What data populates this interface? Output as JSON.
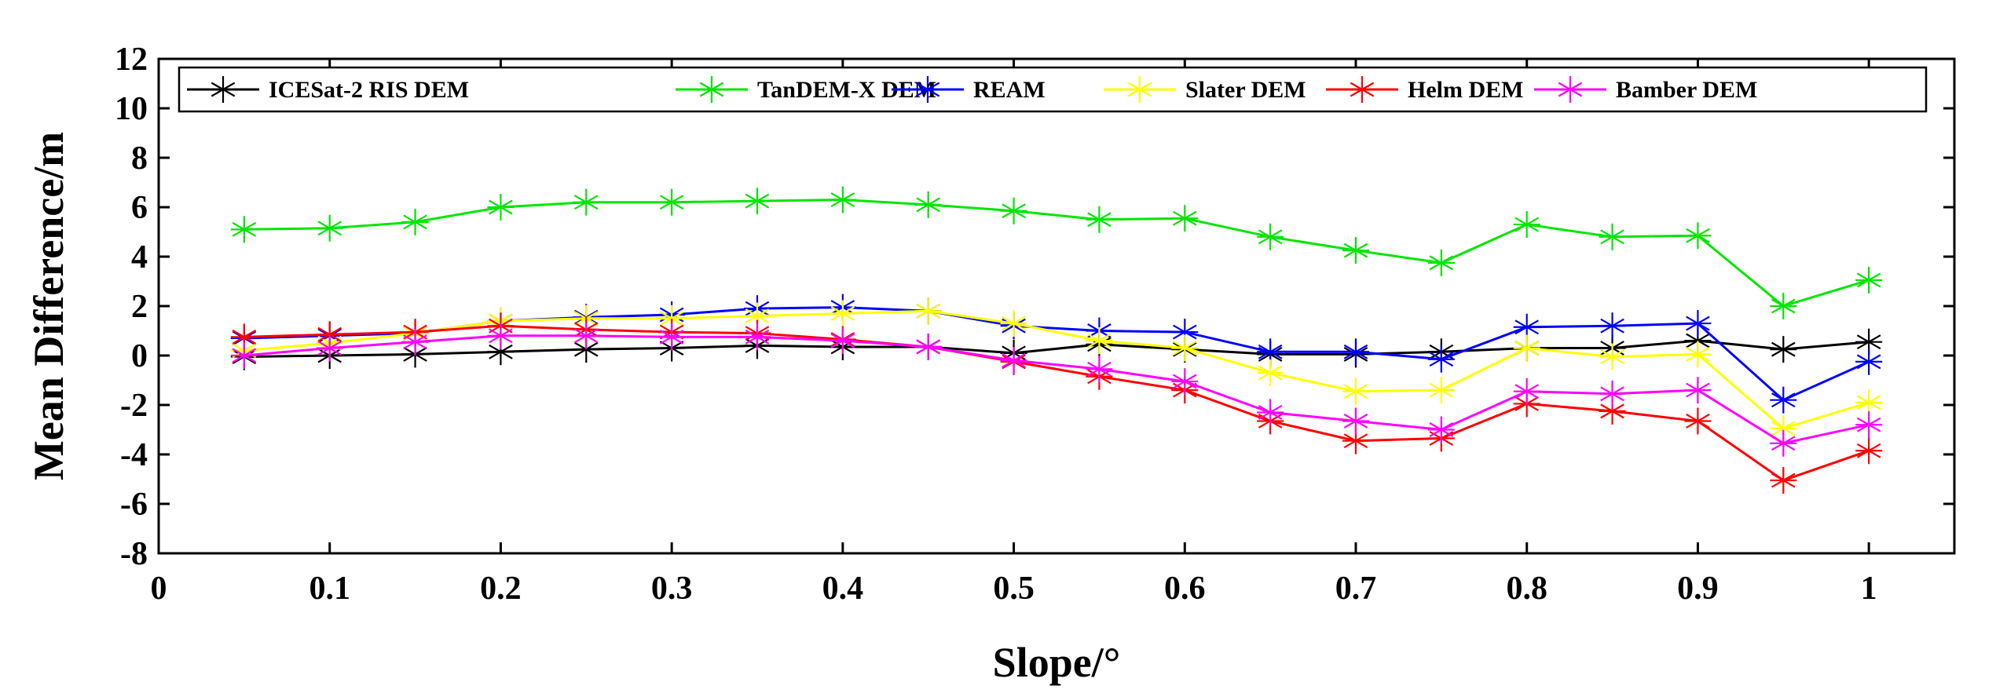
{
  "chart_data": {
    "type": "line",
    "title": "",
    "xlabel": "Slope/°",
    "ylabel": "Mean Difference/m",
    "xlim": [
      0,
      1.05
    ],
    "ylim": [
      -8,
      12
    ],
    "xticks": [
      0,
      0.1,
      0.2,
      0.3,
      0.4,
      0.5,
      0.6,
      0.7,
      0.8,
      0.9,
      1
    ],
    "xtick_labels": [
      "0",
      "0.1",
      "0.2",
      "0.3",
      "0.4",
      "0.5",
      "0.6",
      "0.7",
      "0.8",
      "0.9",
      "1"
    ],
    "yticks": [
      -8,
      -6,
      -4,
      -2,
      0,
      2,
      4,
      6,
      8,
      10,
      12
    ],
    "ytick_labels": [
      "-8",
      "-6",
      "-4",
      "-2",
      "0",
      "2",
      "4",
      "6",
      "8",
      "10",
      "12"
    ],
    "grid": false,
    "legend_position": "top",
    "marker": "asterisk",
    "x": [
      0.05,
      0.1,
      0.15,
      0.2,
      0.25,
      0.3,
      0.35,
      0.4,
      0.45,
      0.5,
      0.55,
      0.6,
      0.65,
      0.7,
      0.75,
      0.8,
      0.85,
      0.9,
      0.95,
      1.0
    ],
    "series": [
      {
        "name": "ICESat-2 RIS DEM",
        "color": "#000000",
        "values": [
          -0.05,
          0.0,
          0.05,
          0.15,
          0.25,
          0.3,
          0.4,
          0.35,
          0.35,
          0.1,
          0.45,
          0.25,
          0.05,
          0.05,
          0.15,
          0.3,
          0.3,
          0.6,
          0.25,
          0.55
        ]
      },
      {
        "name": "TanDEM-X DEM",
        "color": "#00e600",
        "values": [
          5.1,
          5.15,
          5.4,
          6.0,
          6.2,
          6.2,
          6.25,
          6.3,
          6.1,
          5.85,
          5.5,
          5.55,
          4.8,
          4.25,
          3.75,
          5.3,
          4.8,
          4.85,
          2.0,
          3.05
        ]
      },
      {
        "name": "REAM",
        "color": "#0000ff",
        "values": [
          0.7,
          0.8,
          0.9,
          1.4,
          1.55,
          1.65,
          1.9,
          1.95,
          1.8,
          1.2,
          1.0,
          0.95,
          0.15,
          0.15,
          -0.15,
          1.15,
          1.2,
          1.3,
          -1.8,
          -0.25
        ]
      },
      {
        "name": "Slater DEM",
        "color": "#ffff00",
        "values": [
          0.2,
          0.5,
          0.9,
          1.4,
          1.5,
          1.5,
          1.6,
          1.7,
          1.8,
          1.3,
          0.6,
          0.3,
          -0.7,
          -1.45,
          -1.4,
          0.3,
          -0.05,
          0.05,
          -2.95,
          -1.9
        ]
      },
      {
        "name": "Helm DEM",
        "color": "#ff0000",
        "values": [
          0.75,
          0.85,
          0.95,
          1.2,
          1.05,
          0.95,
          0.9,
          0.65,
          0.35,
          -0.25,
          -0.85,
          -1.4,
          -2.65,
          -3.45,
          -3.35,
          -1.95,
          -2.25,
          -2.65,
          -5.05,
          -3.85
        ]
      },
      {
        "name": "Bamber DEM",
        "color": "#ff00ff",
        "values": [
          0.0,
          0.3,
          0.55,
          0.8,
          0.8,
          0.75,
          0.75,
          0.6,
          0.35,
          -0.2,
          -0.55,
          -1.05,
          -2.3,
          -2.65,
          -3.0,
          -1.45,
          -1.55,
          -1.4,
          -3.55,
          -2.8
        ]
      }
    ]
  }
}
